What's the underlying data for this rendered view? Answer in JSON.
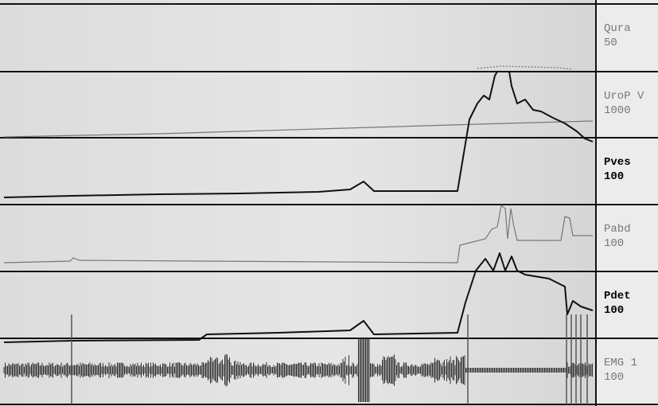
{
  "channels": [
    {
      "label": "Qura",
      "scale": "50"
    },
    {
      "label": "UroP V",
      "scale": "1000"
    },
    {
      "label": "Pves",
      "scale": "100"
    },
    {
      "label": "Pabd",
      "scale": "100"
    },
    {
      "label": "Pdet",
      "scale": "100"
    },
    {
      "label": "EMG 1",
      "scale": "100"
    }
  ]
}
